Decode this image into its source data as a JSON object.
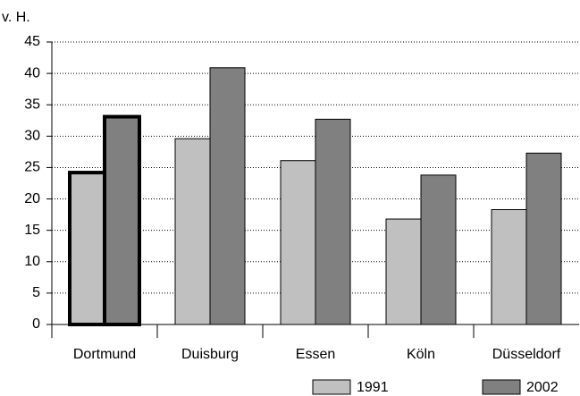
{
  "chart_data": {
    "type": "bar",
    "y_label": "v. H.",
    "categories": [
      "Dortmund",
      "Duisburg",
      "Essen",
      "Köln",
      "Düsseldorf"
    ],
    "series": [
      {
        "name": "1991",
        "color": "#c0c0c0",
        "values": [
          24.2,
          29.6,
          26.1,
          16.8,
          18.3
        ]
      },
      {
        "name": "2002",
        "color": "#808080",
        "values": [
          33.1,
          40.9,
          32.7,
          23.8,
          27.3
        ]
      }
    ],
    "ylim": [
      0,
      45
    ],
    "yticks": [
      0,
      5,
      10,
      15,
      20,
      25,
      30,
      35,
      40,
      45
    ],
    "grid": true,
    "legend": "bottom-right",
    "highlighted_category_index": 0
  }
}
